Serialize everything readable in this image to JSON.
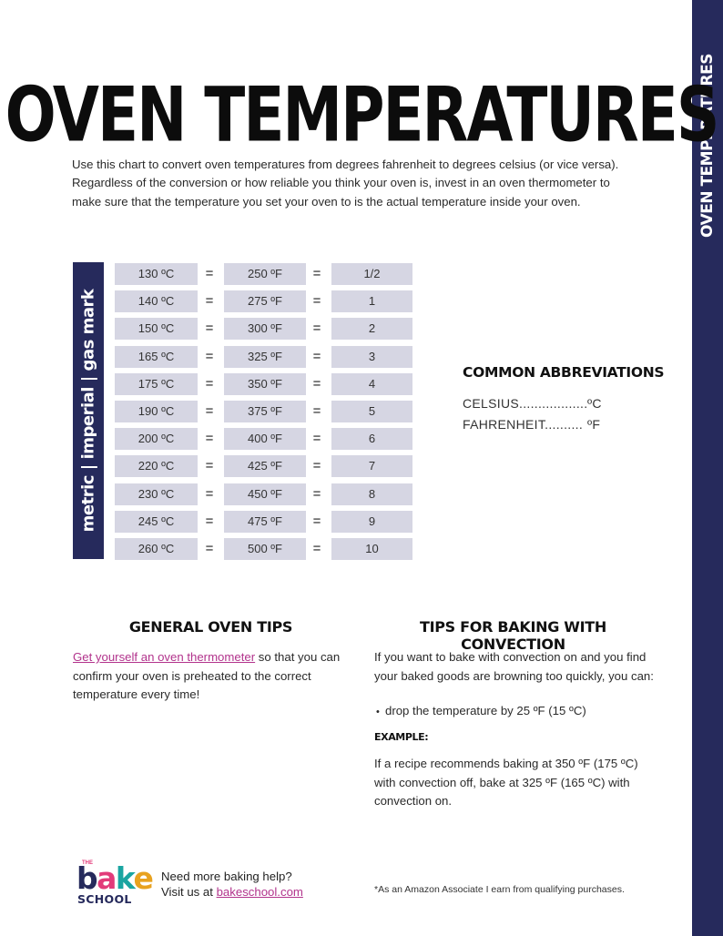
{
  "side_tab": {
    "label": "OVEN TEMPERATURES",
    "color": "#262a5c"
  },
  "title": "OVEN TEMPERATURES",
  "intro": "Use this chart to convert oven temperatures from degrees fahrenheit to degrees celsius (or vice versa). Regardless of the conversion or how reliable you think your oven is, invest in an oven thermometer to make sure that the temperature you set your oven to is the actual temperature inside your oven.",
  "table": {
    "side_label": "metric | imperial | gas mark",
    "equals": "=",
    "cell_color": "#d6d6e3",
    "rows": [
      {
        "c": "130 ºC",
        "f": "250 ºF",
        "gas": "1/2"
      },
      {
        "c": "140 ºC",
        "f": "275 ºF",
        "gas": "1"
      },
      {
        "c": "150 ºC",
        "f": "300 ºF",
        "gas": "2"
      },
      {
        "c": "165 ºC",
        "f": "325 ºF",
        "gas": "3"
      },
      {
        "c": "175 ºC",
        "f": "350 ºF",
        "gas": "4"
      },
      {
        "c": "190 ºC",
        "f": "375 ºF",
        "gas": "5"
      },
      {
        "c": "200 ºC",
        "f": "400 ºF",
        "gas": "6"
      },
      {
        "c": "220 ºC",
        "f": "425 ºF",
        "gas": "7"
      },
      {
        "c": "230 ºC",
        "f": "450 ºF",
        "gas": "8"
      },
      {
        "c": "245 ºC",
        "f": "475 ºF",
        "gas": "9"
      },
      {
        "c": "260 ºC",
        "f": "500 ºF",
        "gas": "10"
      }
    ]
  },
  "abbreviations": {
    "title": "COMMON ABBREVIATIONS",
    "items": [
      {
        "term": "CELSIUS..................",
        "unit": "ºC"
      },
      {
        "term": "FAHRENHEIT..........",
        "unit": "ºF"
      }
    ]
  },
  "general_tips": {
    "title": "GENERAL OVEN TIPS",
    "link_text": "Get yourself an oven thermometer",
    "text": " so that you can confirm your oven is preheated to the correct temperature every time!",
    "link_color": "#b2338c"
  },
  "convection_tips": {
    "title": "TIPS FOR BAKING WITH CONVECTION",
    "intro": "If you want to bake with convection on and you find your baked goods are browning too quickly, you can:",
    "bullets": [
      "drop the temperature by 25 ºF (15 ºC)"
    ],
    "example_label": "EXAMPLE:",
    "example_text": "If a recipe recommends baking at 350 ºF (175 ºC) with convection off, bake at 325 ºF (165 ºC) with convection on."
  },
  "footer": {
    "logo": {
      "the": "THE",
      "letters": [
        "b",
        "a",
        "k",
        "e"
      ],
      "letter_colors": [
        "#262a5c",
        "#e23b7a",
        "#1aa5a1",
        "#e8a21f"
      ],
      "school": "SCHOOL"
    },
    "help_line1": "Need more baking help?",
    "help_line2_prefix": "Visit us at ",
    "help_link": "bakeschool.com",
    "disclaimer": "*As an Amazon Associate I earn from qualifying purchases."
  }
}
